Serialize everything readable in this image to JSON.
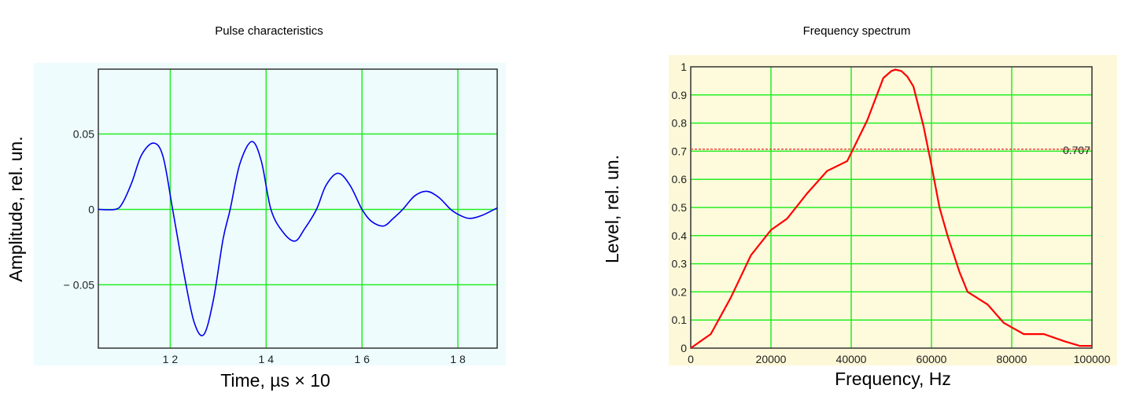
{
  "chart_data": [
    {
      "type": "line",
      "title": "Pulse characteristics",
      "xlabel": "Time, µs × 10",
      "ylabel": "Amplitude, rel. un.",
      "xlim": [
        10.5,
        18.82
      ],
      "ylim": [
        -0.092,
        0.093
      ],
      "xticks": [
        12,
        14,
        16,
        18
      ],
      "xtick_labels": [
        "1 2",
        "1 4",
        "1 6",
        "1 8"
      ],
      "yticks": [
        0.05,
        0,
        -0.05
      ],
      "ytick_labels": [
        "0.05",
        "0",
        "− 0.05"
      ],
      "grid": true,
      "colors": {
        "line": "#0000ee",
        "grid": "#22ee22",
        "background": "#eefcfe"
      },
      "series": [
        {
          "x": [
            10.5,
            10.85,
            11.0,
            11.2,
            11.4,
            11.65,
            11.85,
            12.05,
            12.3,
            12.5,
            12.7,
            12.9,
            13.1,
            13.25,
            13.45,
            13.7,
            13.9,
            14.1,
            14.35,
            14.6,
            14.8,
            15.05,
            15.25,
            15.5,
            15.75,
            16.0,
            16.2,
            16.45,
            16.65,
            16.85,
            17.1,
            17.35,
            17.6,
            17.85,
            18.05,
            18.25,
            18.5,
            18.82
          ],
          "y": [
            0,
            0,
            0.004,
            0.018,
            0.036,
            0.044,
            0.035,
            0.0,
            -0.045,
            -0.075,
            -0.083,
            -0.06,
            -0.02,
            0.0,
            0.03,
            0.045,
            0.032,
            0.0,
            -0.015,
            -0.021,
            -0.013,
            0.0,
            0.016,
            0.024,
            0.016,
            0.0,
            -0.008,
            -0.011,
            -0.006,
            0.0,
            0.009,
            0.012,
            0.008,
            0.0,
            -0.004,
            -0.006,
            -0.004,
            0.001
          ]
        }
      ]
    },
    {
      "type": "line",
      "title": "Frequency spectrum",
      "xlabel": "Frequency, Hz",
      "ylabel": "Level, rel. un.",
      "xlim": [
        0,
        100000
      ],
      "ylim": [
        0,
        1
      ],
      "xticks": [
        0,
        20000,
        40000,
        60000,
        80000,
        100000
      ],
      "xtick_labels": [
        "0",
        "20000",
        "40000",
        "60000",
        "80000",
        "100000"
      ],
      "yticks": [
        0,
        0.1,
        0.2,
        0.3,
        0.4,
        0.5,
        0.6,
        0.7,
        0.8,
        0.9,
        1
      ],
      "ytick_labels": [
        "0",
        "0.1",
        "0.2",
        "0.3",
        "0.4",
        "0.5",
        "0.6",
        "0.7",
        "0.8",
        "0.9",
        "1"
      ],
      "grid": true,
      "reference_line": {
        "y": 0.707,
        "label": "0.707",
        "style": "dashed"
      },
      "colors": {
        "line": "#ff0000",
        "grid": "#22ee22",
        "background": "#fefbdc",
        "outer": "#fdf8d8"
      },
      "series": [
        {
          "x": [
            0,
            5000,
            10000,
            15000,
            20000,
            24000,
            29000,
            34000,
            39000,
            44000,
            48000,
            50000,
            51000,
            52500,
            54000,
            55500,
            58000,
            60000,
            62000,
            64000,
            67000,
            69000,
            74000,
            78000,
            83000,
            88000,
            93000,
            97000,
            100000
          ],
          "y": [
            0,
            0.05,
            0.18,
            0.33,
            0.42,
            0.46,
            0.55,
            0.63,
            0.665,
            0.81,
            0.96,
            0.985,
            0.99,
            0.985,
            0.965,
            0.93,
            0.79,
            0.65,
            0.5,
            0.4,
            0.27,
            0.2,
            0.155,
            0.09,
            0.05,
            0.05,
            0.025,
            0.008,
            0.008
          ]
        }
      ]
    }
  ]
}
